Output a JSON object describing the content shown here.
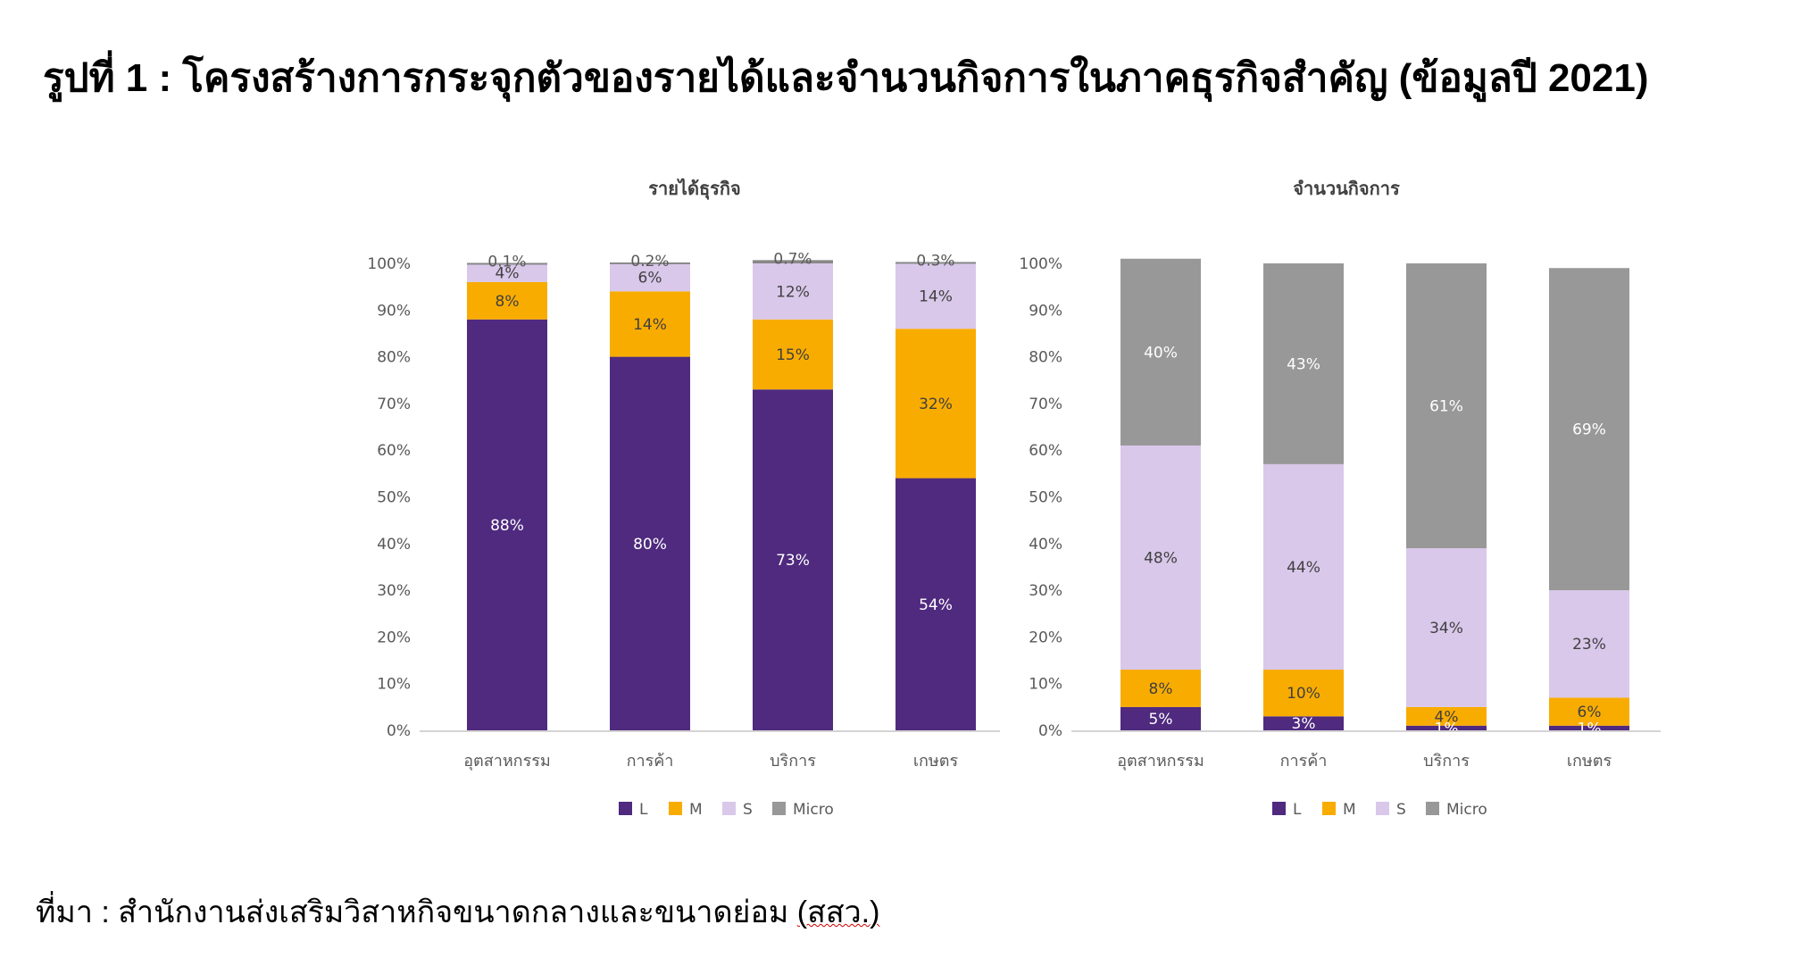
{
  "page": {
    "title": "รูปที่ 1 : โครงสร้างการกระจุกตัวของรายได้และจำนวนกิจการในภาคธุรกิจสำคัญ (ข้อมูลปี 2021)",
    "source_prefix": "ที่มา : สำนักงานส่งเสริมวิสาหกิจขนาดกลางและขนาดย่อม ",
    "source_abbr": "(สสว.)"
  },
  "colors": {
    "L": "#4f2a7f",
    "M": "#f9ac00",
    "S": "#d9c8ea",
    "Micro": "#989898",
    "axis": "#d4d4d4",
    "tick_text": "#595959",
    "title_text": "#404040"
  },
  "chart_data": [
    {
      "type": "bar",
      "stacked": true,
      "title": "รายได้ธุรกิจ",
      "categories": [
        "อุตสาหกรรม",
        "การค้า",
        "บริการ",
        "เกษตร"
      ],
      "series": [
        {
          "name": "L",
          "values": [
            88,
            80,
            73,
            54
          ],
          "labels": [
            "88%",
            "80%",
            "73%",
            "54%"
          ]
        },
        {
          "name": "M",
          "values": [
            8,
            14,
            15,
            32
          ],
          "labels": [
            "8%",
            "14%",
            "15%",
            "32%"
          ]
        },
        {
          "name": "S",
          "values": [
            4,
            6,
            12,
            14
          ],
          "labels": [
            "4%",
            "6%",
            "12%",
            "14%"
          ]
        },
        {
          "name": "Micro",
          "values": [
            0.1,
            0.2,
            0.7,
            0.3
          ],
          "labels": [
            "0.1%",
            "0.2%",
            "0.7%",
            "0.3%"
          ]
        }
      ],
      "ylim": [
        0,
        100
      ],
      "yticks": [
        "0%",
        "10%",
        "20%",
        "30%",
        "40%",
        "50%",
        "60%",
        "70%",
        "80%",
        "90%",
        "100%"
      ],
      "xlabel": "",
      "ylabel": "",
      "legend": [
        "L",
        "M",
        "S",
        "Micro"
      ],
      "legend_position": "bottom",
      "grid": false
    },
    {
      "type": "bar",
      "stacked": true,
      "title": "จำนวนกิจการ",
      "categories": [
        "อุตสาหกรรม",
        "การค้า",
        "บริการ",
        "เกษตร"
      ],
      "series": [
        {
          "name": "L",
          "values": [
            5,
            3,
            1,
            1
          ],
          "labels": [
            "5%",
            "3%",
            "1%",
            "1%"
          ]
        },
        {
          "name": "M",
          "values": [
            8,
            10,
            4,
            6
          ],
          "labels": [
            "8%",
            "10%",
            "4%",
            "6%"
          ]
        },
        {
          "name": "S",
          "values": [
            48,
            44,
            34,
            23
          ],
          "labels": [
            "48%",
            "44%",
            "34%",
            "23%"
          ]
        },
        {
          "name": "Micro",
          "values": [
            40,
            43,
            61,
            69
          ],
          "labels": [
            "40%",
            "43%",
            "61%",
            "69%"
          ]
        }
      ],
      "ylim": [
        0,
        100
      ],
      "yticks": [
        "0%",
        "10%",
        "20%",
        "30%",
        "40%",
        "50%",
        "60%",
        "70%",
        "80%",
        "90%",
        "100%"
      ],
      "xlabel": "",
      "ylabel": "",
      "legend": [
        "L",
        "M",
        "S",
        "Micro"
      ],
      "legend_position": "bottom",
      "grid": false
    }
  ]
}
